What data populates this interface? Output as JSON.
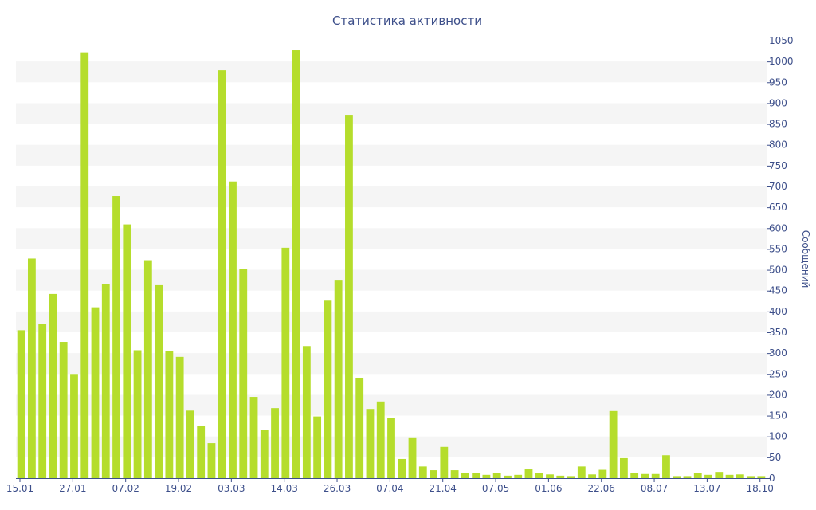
{
  "chart_data": {
    "type": "bar",
    "title": "Статистика активности",
    "xlabel": "",
    "ylabel": "Сообщений",
    "ylim": [
      0,
      1050
    ],
    "y_ticks": [
      0,
      50,
      100,
      150,
      200,
      250,
      300,
      350,
      400,
      450,
      500,
      550,
      600,
      650,
      700,
      750,
      800,
      850,
      900,
      950,
      1000,
      1050
    ],
    "x_tick_labels": [
      {
        "index": 0,
        "label": "15.01"
      },
      {
        "index": 5,
        "label": "27.01"
      },
      {
        "index": 10,
        "label": "07.02"
      },
      {
        "index": 15,
        "label": "19.02"
      },
      {
        "index": 20,
        "label": "03.03"
      },
      {
        "index": 25,
        "label": "14.03"
      },
      {
        "index": 30,
        "label": "26.03"
      },
      {
        "index": 35,
        "label": "07.04"
      },
      {
        "index": 40,
        "label": "21.04"
      },
      {
        "index": 45,
        "label": "07.05"
      },
      {
        "index": 50,
        "label": "01.06"
      },
      {
        "index": 55,
        "label": "22.06"
      },
      {
        "index": 60,
        "label": "08.07"
      },
      {
        "index": 65,
        "label": "13.07"
      },
      {
        "index": 70,
        "label": "18.10"
      }
    ],
    "values": [
      355,
      527,
      370,
      442,
      327,
      250,
      1022,
      410,
      465,
      677,
      609,
      307,
      523,
      463,
      306,
      291,
      162,
      125,
      84,
      979,
      712,
      502,
      195,
      115,
      168,
      553,
      1027,
      317,
      148,
      426,
      476,
      872,
      241,
      166,
      184,
      145,
      46,
      96,
      28,
      19,
      75,
      19,
      12,
      12,
      8,
      12,
      6,
      8,
      21,
      12,
      9,
      6,
      5,
      28,
      9,
      20,
      161,
      48,
      13,
      10,
      10,
      55,
      5,
      5,
      13,
      8,
      15,
      8,
      9,
      5,
      5
    ],
    "bar_color": "#b5dd2c",
    "band_color": "#f5f5f5",
    "text_color": "#3d4f8a",
    "axis_color": "#3d4f8a",
    "grid": "alternating horizontal bands",
    "legend": "none"
  }
}
